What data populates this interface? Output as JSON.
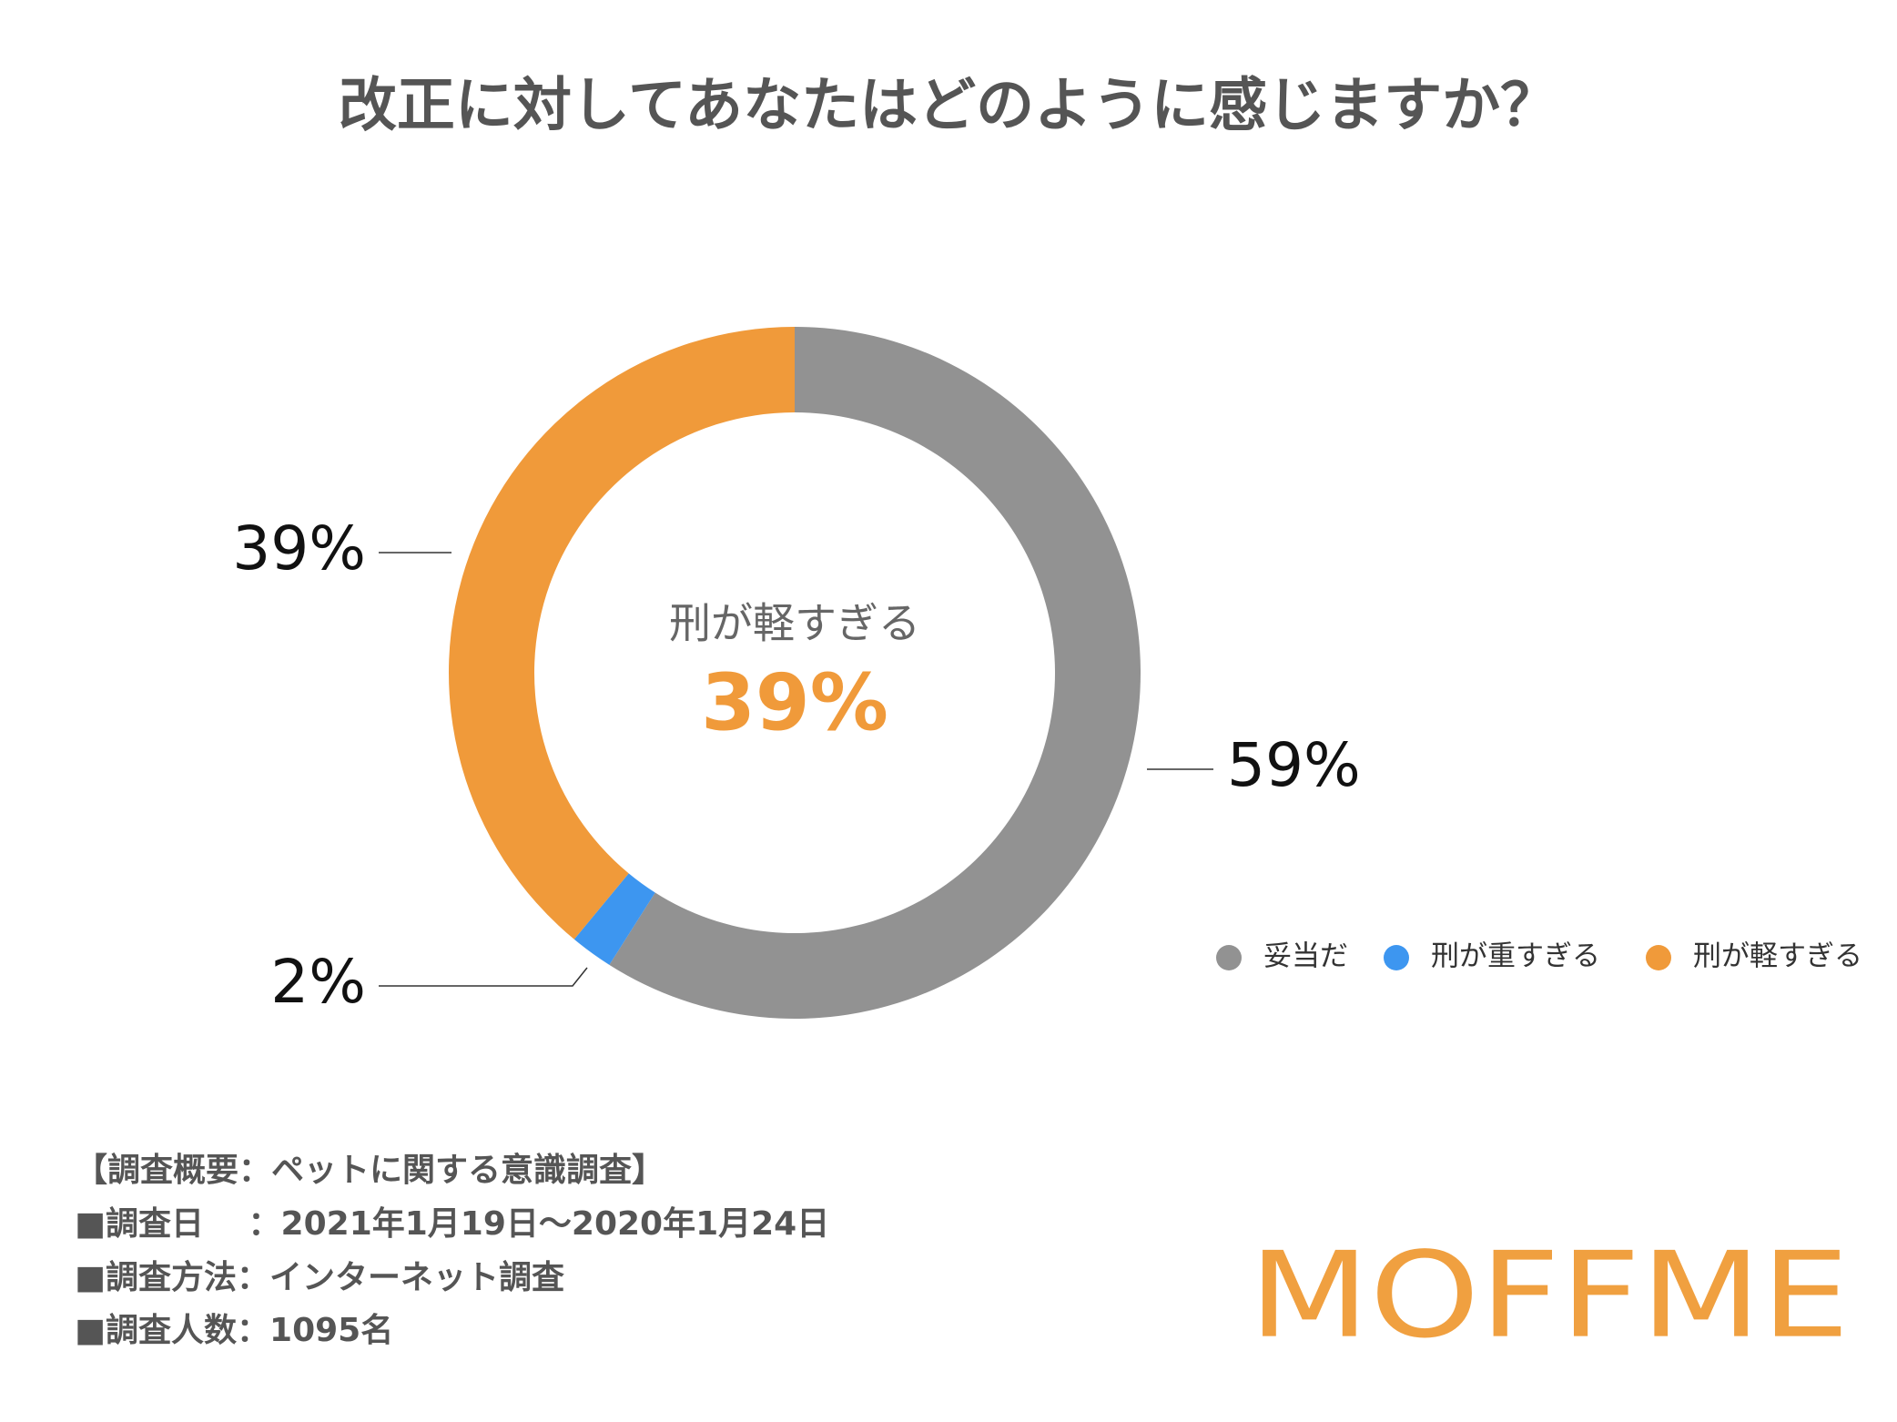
{
  "chart_data": {
    "type": "donut",
    "title": "改正に対してあなたはどのように感じますか？",
    "categories": [
      "妥当だ",
      "刑が重すぎる",
      "刑が軽すぎる"
    ],
    "values": [
      59,
      2,
      39
    ],
    "value_labels": [
      "59%",
      "2%",
      "39%"
    ],
    "colors": [
      "#929292",
      "#3d96f0",
      "#f09a3a"
    ],
    "legend": "bottom-right"
  },
  "footer": {
    "lines": [
      "【調査概要：ペットに関する意識調査】",
      "■調査日　 ：2021年1月19日〜2020年1月24日",
      "■調査方法：インターネット調査",
      "■調査人数：1095名"
    ],
    "logo": "MOFFME"
  }
}
